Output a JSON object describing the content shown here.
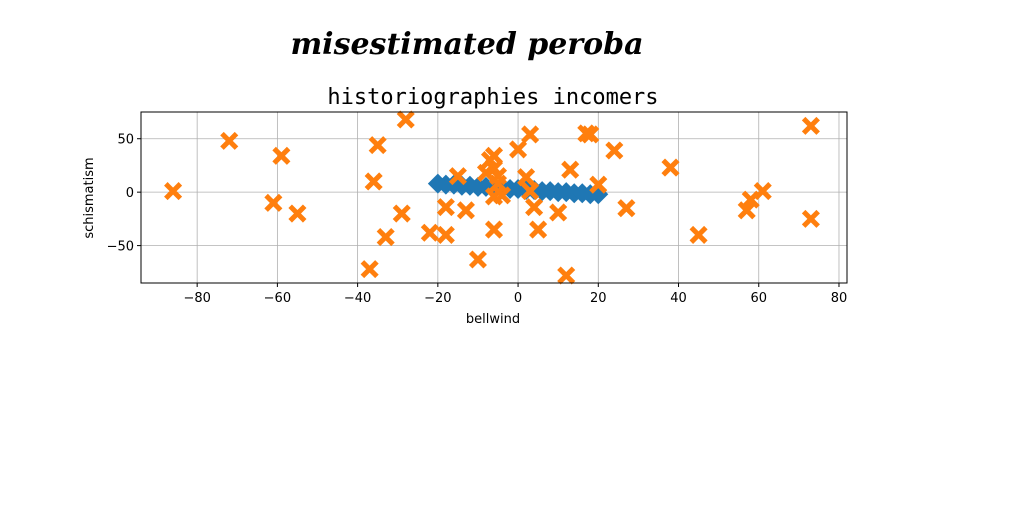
{
  "suptitle": "misestimated peroba",
  "chart_data": {
    "type": "scatter",
    "title": "historiographies incomers",
    "xlabel": "bellwind",
    "ylabel": "schismatism",
    "xlim": [
      -94,
      82
    ],
    "ylim": [
      -85,
      75
    ],
    "xticks": [
      -80,
      -60,
      -40,
      -20,
      0,
      20,
      40,
      60,
      80
    ],
    "yticks": [
      -50,
      0,
      50
    ],
    "grid": true,
    "series": [
      {
        "marker": "diamond",
        "color": "#1f77b4",
        "points": [
          [
            -20,
            8
          ],
          [
            -18,
            7
          ],
          [
            -16,
            7
          ],
          [
            -14,
            6
          ],
          [
            -12,
            6
          ],
          [
            -10,
            5
          ],
          [
            -8,
            5
          ],
          [
            -6,
            4
          ],
          [
            -4,
            4
          ],
          [
            -2,
            3
          ],
          [
            0,
            3
          ],
          [
            2,
            2
          ],
          [
            4,
            2
          ],
          [
            6,
            1
          ],
          [
            8,
            1
          ],
          [
            10,
            0
          ],
          [
            12,
            0
          ],
          [
            14,
            -1
          ],
          [
            16,
            -1
          ],
          [
            18,
            -2
          ],
          [
            20,
            -2
          ]
        ]
      },
      {
        "marker": "x",
        "color": "#ff7f0e",
        "points": [
          [
            -86,
            1
          ],
          [
            -72,
            48
          ],
          [
            -61,
            -10
          ],
          [
            -59,
            34
          ],
          [
            -55,
            -20
          ],
          [
            -37,
            -72
          ],
          [
            -36,
            10
          ],
          [
            -35,
            44
          ],
          [
            -33,
            -42
          ],
          [
            -29,
            -20
          ],
          [
            -28,
            68
          ],
          [
            -22,
            -38
          ],
          [
            -18,
            -14
          ],
          [
            -18,
            -40
          ],
          [
            -15,
            15
          ],
          [
            -13,
            -17
          ],
          [
            -10,
            -63
          ],
          [
            -8,
            18
          ],
          [
            -7,
            30
          ],
          [
            -6,
            -35
          ],
          [
            -6,
            22
          ],
          [
            -6,
            -4
          ],
          [
            -6,
            34
          ],
          [
            -5,
            15
          ],
          [
            -5,
            8
          ],
          [
            -4,
            -3
          ],
          [
            0,
            40
          ],
          [
            2,
            14
          ],
          [
            3,
            54
          ],
          [
            3,
            1
          ],
          [
            4,
            -14
          ],
          [
            5,
            -35
          ],
          [
            10,
            -19
          ],
          [
            12,
            -78
          ],
          [
            13,
            21
          ],
          [
            17,
            55
          ],
          [
            18,
            54
          ],
          [
            20,
            7
          ],
          [
            24,
            39
          ],
          [
            27,
            -15
          ],
          [
            38,
            23
          ],
          [
            45,
            -40
          ],
          [
            57,
            -17
          ],
          [
            58,
            -7
          ],
          [
            61,
            1
          ],
          [
            73,
            62
          ],
          [
            73,
            -25
          ]
        ]
      }
    ]
  }
}
